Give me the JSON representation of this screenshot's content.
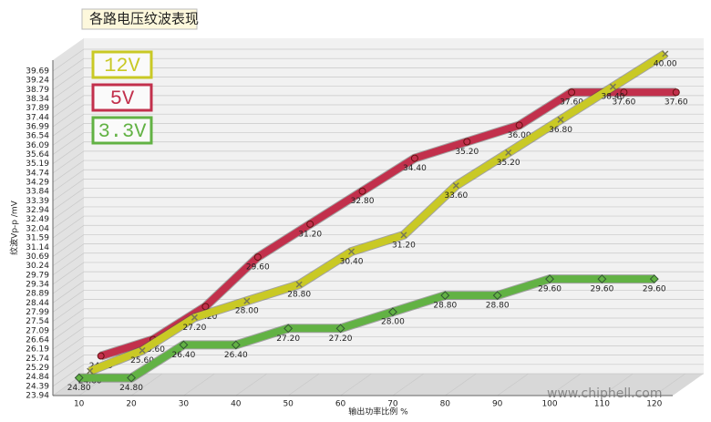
{
  "chart_data": {
    "type": "line",
    "title": "各路电压纹波表现",
    "x_label": "输出功率比例 %",
    "y_label": "纹波Vp-p /mV",
    "watermark": "www.chiphell.com",
    "x": [
      10,
      20,
      30,
      40,
      50,
      60,
      70,
      80,
      90,
      100,
      110,
      120
    ],
    "xlim": [
      5,
      123
    ],
    "xticks": [
      10,
      20,
      30,
      40,
      50,
      60,
      70,
      80,
      90,
      100,
      110,
      120
    ],
    "ylim": [
      23.94,
      39.69
    ],
    "yticks": [
      23.94,
      24.39,
      24.84,
      25.29,
      25.74,
      26.19,
      26.64,
      27.09,
      27.54,
      27.99,
      28.44,
      28.89,
      29.34,
      29.79,
      30.24,
      30.69,
      31.14,
      31.59,
      32.04,
      32.49,
      32.94,
      33.39,
      33.84,
      34.29,
      34.74,
      35.19,
      35.64,
      36.09,
      36.54,
      36.99,
      37.44,
      37.89,
      38.34,
      38.79,
      39.24,
      39.69
    ],
    "grid": true,
    "legend": "top-left",
    "series": [
      {
        "name": "12V",
        "color": "#c9c925",
        "values": [
          24.6,
          25.6,
          27.2,
          28.0,
          28.8,
          30.4,
          31.2,
          33.6,
          35.2,
          36.8,
          38.4,
          40.0
        ],
        "value_labels": [
          "24.60",
          "25.60",
          "27.20",
          "28.00",
          "28.80",
          "30.40",
          "31.20",
          "33.60",
          "35.20",
          "36.80",
          "38.40",
          "40.00"
        ]
      },
      {
        "name": "5V",
        "color": "#c2304c",
        "values": [
          24.8,
          25.6,
          27.2,
          29.6,
          31.2,
          32.8,
          34.4,
          35.2,
          36.0,
          37.6,
          37.6,
          37.6
        ],
        "value_labels": [
          "24.80",
          "25.60",
          "27.20",
          "29.60",
          "31.20",
          "32.80",
          "34.40",
          "35.20",
          "36.00",
          "37.60",
          "37.60",
          "37.60"
        ]
      },
      {
        "name": "3.3V",
        "color": "#62b244",
        "values": [
          24.8,
          24.8,
          26.4,
          26.4,
          27.2,
          27.2,
          28.0,
          28.8,
          28.8,
          29.6,
          29.6,
          29.6
        ],
        "value_labels": [
          "24.80",
          "24.80",
          "26.40",
          "26.40",
          "27.20",
          "27.20",
          "28.00",
          "28.80",
          "28.80",
          "29.60",
          "29.60",
          "29.60"
        ]
      }
    ]
  }
}
